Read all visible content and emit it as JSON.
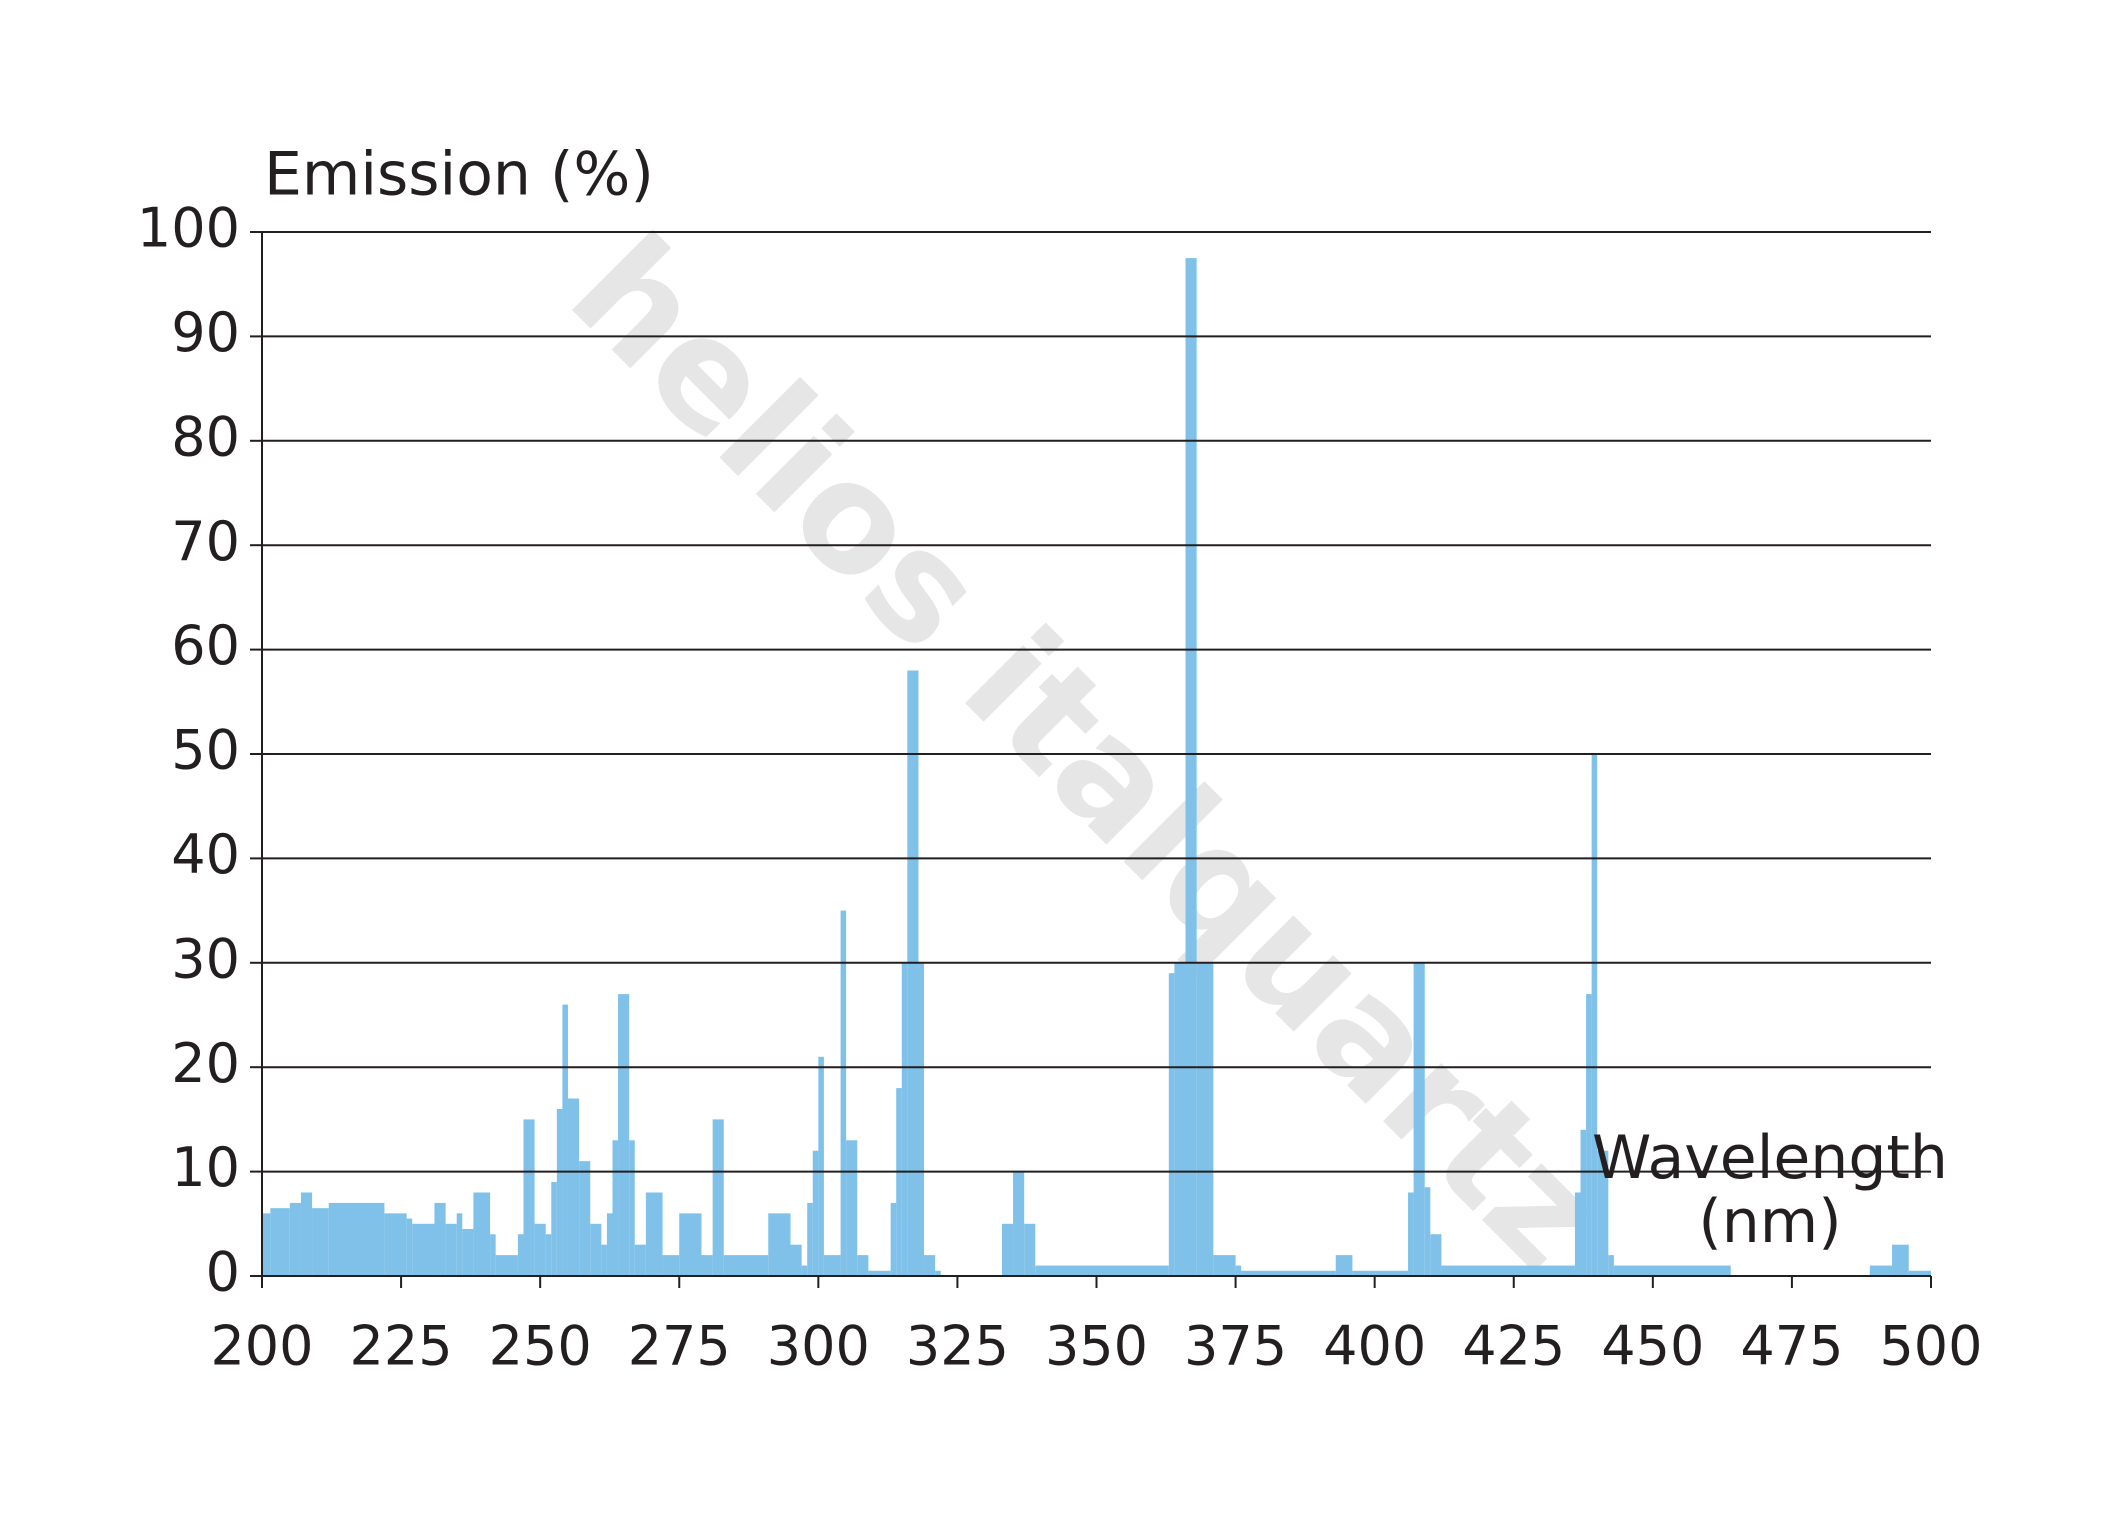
{
  "chart_data": {
    "type": "histogram",
    "ylabel": "Emission (%)",
    "xlabel": "Wavelength (nm)",
    "watermark": "helios italquartz",
    "color": "#7fc1e9",
    "grid": true,
    "bins": [
      200,
      201.5,
      205,
      207,
      209,
      212,
      222,
      226,
      227,
      231,
      233,
      235,
      236,
      238,
      241,
      242,
      246,
      247,
      249,
      251,
      252,
      253,
      254,
      255,
      257,
      259,
      261,
      262,
      263,
      264,
      266,
      267,
      269,
      272,
      275,
      279,
      281,
      283,
      291,
      295,
      297,
      298,
      299,
      300,
      301,
      304,
      305,
      307,
      309,
      313,
      314,
      315,
      316,
      318,
      319,
      321,
      322,
      333,
      335,
      337,
      339,
      363,
      364,
      366,
      368,
      371,
      375,
      376,
      393,
      396,
      406,
      407,
      409,
      410,
      412,
      436,
      437,
      438,
      439,
      440,
      442,
      443,
      464,
      489,
      493,
      496,
      500
    ],
    "values": [
      6,
      6.5,
      7,
      8,
      6.5,
      7,
      6,
      5.5,
      5,
      7,
      5,
      6,
      4.5,
      8,
      4,
      2,
      4,
      15,
      5,
      4,
      9,
      16,
      26,
      17,
      11,
      5,
      3,
      6,
      13,
      27,
      13,
      3,
      8,
      2,
      6,
      2,
      15,
      2,
      6,
      3,
      1,
      7,
      12,
      21,
      2,
      35,
      13,
      2,
      0.5,
      7,
      18,
      30,
      58,
      30,
      2,
      0.5,
      0,
      5,
      10,
      5,
      1,
      29,
      30,
      97.5,
      30,
      2,
      1,
      0.5,
      2,
      0.5,
      8,
      30,
      8.5,
      4,
      1,
      8,
      14,
      27,
      50,
      12,
      2,
      1,
      0,
      1,
      3,
      0.5
    ],
    "xlim": [
      200,
      500
    ],
    "xticks": [
      200,
      225,
      250,
      275,
      300,
      325,
      350,
      375,
      400,
      425,
      450,
      475,
      500
    ],
    "ylim": [
      0,
      100
    ],
    "yticks": [
      0,
      10,
      20,
      30,
      40,
      50,
      60,
      70,
      80,
      90,
      100
    ]
  }
}
